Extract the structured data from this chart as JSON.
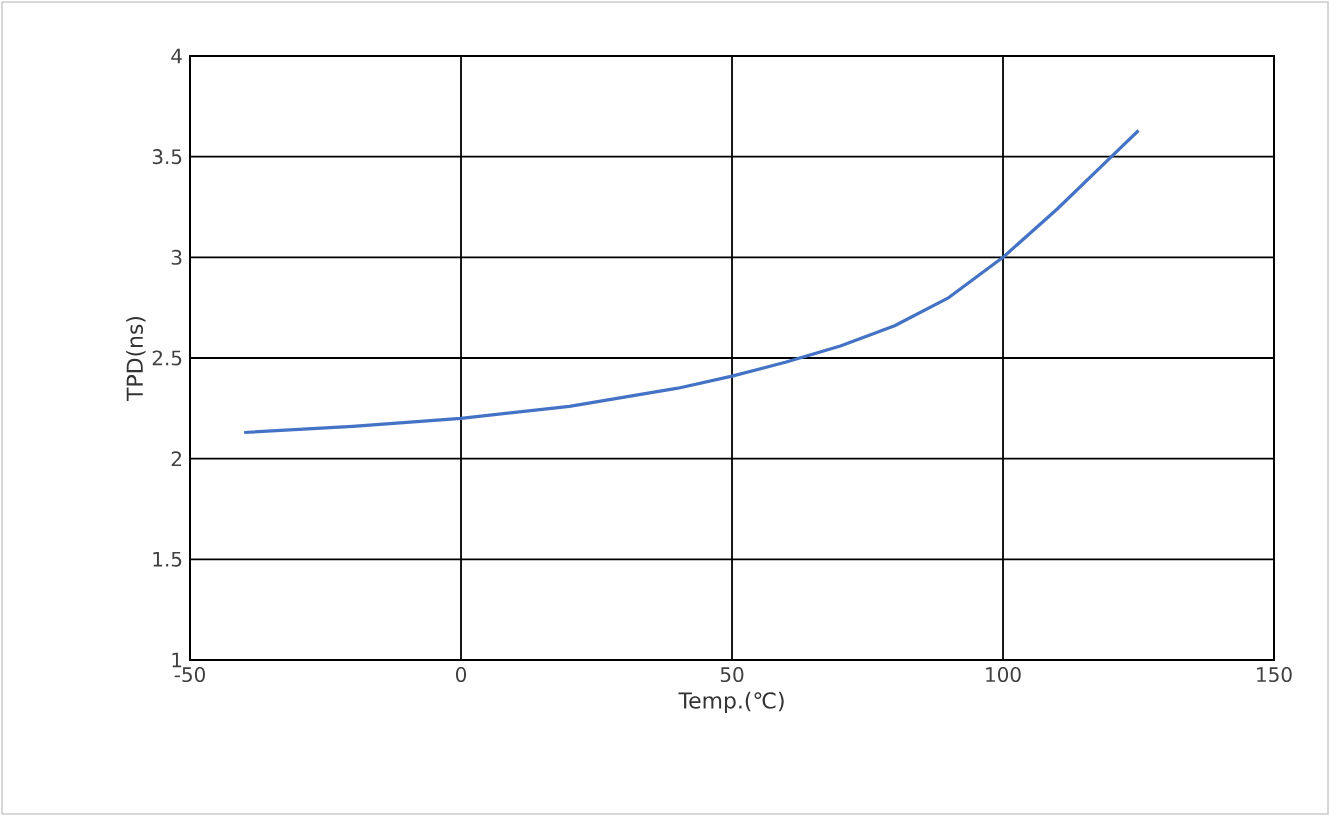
{
  "chart_data": {
    "type": "line",
    "xlabel": "Temp.(℃)",
    "ylabel": "TPD(ns)",
    "x": [
      -40,
      -20,
      0,
      20,
      40,
      50,
      60,
      70,
      80,
      90,
      100,
      110,
      120,
      125
    ],
    "series": [
      {
        "color": "#4472c4",
        "values": [
          2.13,
          2.16,
          2.2,
          2.26,
          2.35,
          2.41,
          2.48,
          2.56,
          2.66,
          2.8,
          3.0,
          3.24,
          3.5,
          3.63
        ]
      }
    ],
    "xlim": [
      -50,
      150
    ],
    "xticks": [
      -50,
      0,
      50,
      100,
      150
    ],
    "ylim": [
      1,
      4
    ],
    "yticks": [
      1,
      1.5,
      2,
      2.5,
      3,
      3.5,
      4
    ],
    "grid": true,
    "legend": false,
    "marker": "none",
    "line_style": "solid"
  }
}
